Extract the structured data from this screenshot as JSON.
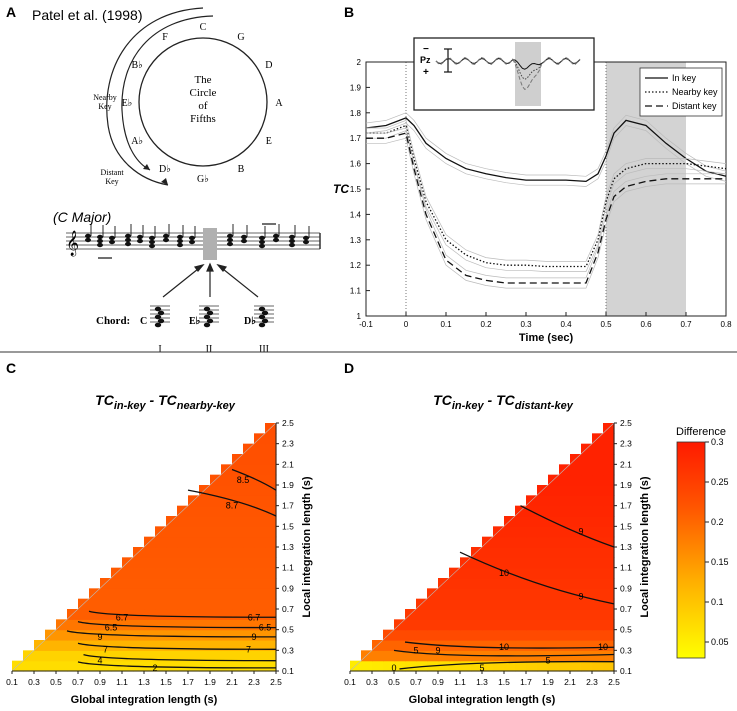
{
  "panels": {
    "A": {
      "letter": "A",
      "citation": "Patel et al. (1998)",
      "circle_title": [
        "The",
        "Circle",
        "of",
        "Fifths"
      ],
      "keys": [
        "C",
        "G",
        "D",
        "A",
        "E",
        "B",
        "G♭",
        "D♭",
        "A♭",
        "E♭",
        "B♭",
        "F"
      ],
      "arrow_labels": {
        "nearby": [
          "Nearby",
          "Key"
        ],
        "distant": [
          "Distant",
          "Key"
        ]
      },
      "key_name": "(C Major)",
      "chord_label": "Chord:",
      "chords": [
        {
          "name": "C",
          "numeral": "I"
        },
        {
          "name": "E♭",
          "numeral": "II"
        },
        {
          "name": "D♭",
          "numeral": "III"
        }
      ]
    },
    "B": {
      "letter": "B",
      "inset_labels": [
        "−",
        "Pz",
        "+"
      ]
    },
    "C": {
      "letter": "C",
      "title_main": "TC",
      "title_sub1": "in-key",
      "title_sep": " - TC",
      "title_sub2": "nearby-key"
    },
    "D": {
      "letter": "D",
      "title_main": "TC",
      "title_sub1": "in-key",
      "title_sep": " - TC",
      "title_sub2": "distant-key",
      "colorbar_title": "Difference",
      "colorbar_ticks": [
        "0.3",
        "0.25",
        "0.2",
        "0.15",
        "0.1",
        "0.05"
      ]
    }
  },
  "chart_data": [
    {
      "type": "line",
      "panel": "B",
      "xlabel": "Time (sec)",
      "ylabel": "TC",
      "xlim": [
        -0.1,
        0.8
      ],
      "ylim": [
        1,
        2
      ],
      "xticks": [
        "-0.1",
        "0",
        "0.1",
        "0.2",
        "0.3",
        "0.4",
        "0.5",
        "0.6",
        "0.7",
        "0.8"
      ],
      "yticks": [
        "1",
        "1.1",
        "1.2",
        "1.3",
        "1.4",
        "1.5",
        "1.6",
        "1.7",
        "1.8",
        "1.9",
        "2"
      ],
      "shaded_interval": [
        0.5,
        0.7
      ],
      "vertical_markers": [
        0,
        0.5
      ],
      "legend": [
        "In key",
        "Nearby key",
        "Distant key"
      ],
      "series": [
        {
          "name": "In key",
          "style": "solid",
          "x": [
            -0.1,
            -0.05,
            0,
            0.02,
            0.05,
            0.1,
            0.15,
            0.2,
            0.25,
            0.3,
            0.35,
            0.4,
            0.45,
            0.48,
            0.5,
            0.52,
            0.55,
            0.6,
            0.65,
            0.7,
            0.75,
            0.8
          ],
          "y": [
            1.74,
            1.75,
            1.78,
            1.75,
            1.68,
            1.62,
            1.58,
            1.56,
            1.545,
            1.535,
            1.535,
            1.535,
            1.53,
            1.56,
            1.63,
            1.72,
            1.77,
            1.75,
            1.68,
            1.62,
            1.57,
            1.55
          ]
        },
        {
          "name": "Nearby key",
          "style": "dotted",
          "x": [
            -0.1,
            -0.05,
            0,
            0.02,
            0.05,
            0.1,
            0.15,
            0.2,
            0.25,
            0.3,
            0.35,
            0.4,
            0.45,
            0.48,
            0.5,
            0.52,
            0.55,
            0.6,
            0.65,
            0.7,
            0.75,
            0.8
          ],
          "y": [
            1.72,
            1.72,
            1.75,
            1.62,
            1.45,
            1.3,
            1.24,
            1.21,
            1.2,
            1.2,
            1.195,
            1.195,
            1.195,
            1.3,
            1.45,
            1.54,
            1.58,
            1.6,
            1.6,
            1.6,
            1.59,
            1.58
          ]
        },
        {
          "name": "Distant key",
          "style": "dashed",
          "x": [
            -0.1,
            -0.05,
            0,
            0.02,
            0.05,
            0.1,
            0.15,
            0.2,
            0.25,
            0.3,
            0.35,
            0.4,
            0.45,
            0.48,
            0.5,
            0.52,
            0.55,
            0.6,
            0.65,
            0.7,
            0.75,
            0.8
          ],
          "y": [
            1.7,
            1.7,
            1.72,
            1.58,
            1.4,
            1.22,
            1.16,
            1.14,
            1.13,
            1.13,
            1.13,
            1.13,
            1.13,
            1.25,
            1.38,
            1.47,
            1.51,
            1.53,
            1.54,
            1.54,
            1.54,
            1.54
          ]
        }
      ]
    },
    {
      "type": "heatmap",
      "panel": "C",
      "title": "TC in-key - TC nearby-key",
      "xlabel": "Global integration length (s)",
      "ylabel": "Local integration length (s)",
      "xticks": [
        "0.1",
        "0.3",
        "0.5",
        "0.7",
        "0.9",
        "1.1",
        "1.3",
        "1.5",
        "1.7",
        "1.9",
        "2.1",
        "2.3",
        "2.5"
      ],
      "yticks": [
        "0.1",
        "0.3",
        "0.5",
        "0.7",
        "0.9",
        "1.1",
        "1.3",
        "1.5",
        "1.7",
        "1.9",
        "2.1",
        "2.3",
        "2.5"
      ],
      "cells": 24,
      "contours": [
        {
          "label": "2",
          "local": 0.13
        },
        {
          "label": "4",
          "local": 0.19
        },
        {
          "label": "7",
          "local": 0.31
        },
        {
          "label": "9",
          "local": 0.43
        },
        {
          "label": "6.5",
          "local": 0.52
        },
        {
          "label": "6.7",
          "local": 0.62
        },
        {
          "label": "8.7",
          "local": 1.6
        },
        {
          "label": "8.5",
          "local": 1.85
        }
      ],
      "contour_labels_shown": [
        "4",
        "2",
        "7",
        "7",
        "9",
        "9",
        "6.5",
        "6.5",
        "6.7",
        "6.7",
        "8.7",
        "8.5"
      ]
    },
    {
      "type": "heatmap",
      "panel": "D",
      "title": "TC in-key - TC distant-key",
      "xlabel": "Global integration length (s)",
      "ylabel": "Local integration length (s)",
      "xticks": [
        "0.1",
        "0.3",
        "0.5",
        "0.7",
        "0.9",
        "1.1",
        "1.3",
        "1.5",
        "1.7",
        "1.9",
        "2.1",
        "2.3",
        "2.5"
      ],
      "yticks": [
        "0.1",
        "0.3",
        "0.5",
        "0.7",
        "0.9",
        "1.1",
        "1.3",
        "1.5",
        "1.7",
        "1.9",
        "2.1",
        "2.3",
        "2.5"
      ],
      "cells": 24,
      "colorbar_range": [
        0.03,
        0.3
      ],
      "contour_labels_shown": [
        "0",
        "5",
        "5",
        "5",
        "9",
        "10",
        "10",
        "10",
        "9",
        "9"
      ]
    }
  ]
}
